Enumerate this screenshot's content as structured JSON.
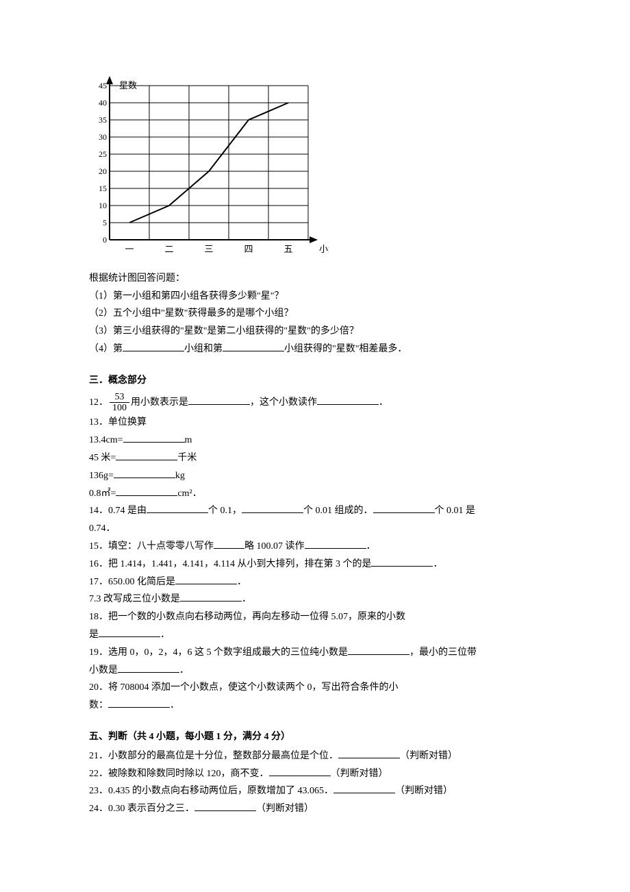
{
  "chart": {
    "type": "line",
    "y_label": "星数",
    "x_label": "小组",
    "categories": [
      "一",
      "二",
      "三",
      "四",
      "五"
    ],
    "values": [
      5,
      10,
      20,
      35,
      40
    ],
    "ylim": [
      0,
      45
    ],
    "ytick_step": 5,
    "y_ticks": [
      0,
      5,
      10,
      15,
      20,
      25,
      30,
      35,
      40,
      45
    ],
    "axis_color": "#000000",
    "grid_color": "#000000",
    "line_color": "#000000",
    "line_width": 2,
    "label_fontsize": 13,
    "tick_fontsize": 12,
    "background_color": "#ffffff"
  },
  "intro_line": "根据统计图回答问题：",
  "q1": "（1）第一小组和第四小组各获得多少颗\"星\"？",
  "q2": "（2）五个小组中\"星数\"获得最多的是哪个小组？",
  "q3": "（3）第三小组获得的\"星数\"是第二小组获得的\"星数\"的多少倍？",
  "q4_pre": "（4）第",
  "q4_mid": "小组和第",
  "q4_post": "小组获得的\"星数\"相差最多．",
  "sec3_head": "三．概念部分",
  "q12_pre": "12．",
  "q12_frac_num": "53",
  "q12_frac_den": "100",
  "q12_mid1": "用小数表示是",
  "q12_mid2": "，这个小数读作",
  "q12_end": "．",
  "q13_head": "13．单位换算",
  "q13_1_pre": "13.4cm=",
  "q13_1_unit": "m",
  "q13_2_pre": "45 米=",
  "q13_2_unit": "千米",
  "q13_3_pre": "136g=",
  "q13_3_unit": "kg",
  "q13_4_pre": "0.8㎡=",
  "q13_4_unit": "cm²．",
  "q14_pre": "14．0.74 是由",
  "q14_m1": "个 0.1，",
  "q14_m2": "个 0.01 组成的．",
  "q14_m3": "个 0.01 是",
  "q14_line2": "0.74．",
  "q15_pre": "15．填空：八十点零零八写作",
  "q15_mid": "略 100.07 读作",
  "q15_end": "．",
  "q16_pre": "16．把 1.414，1.441，4.141，4.114 从小到大排列，排在第 3 个的是",
  "q16_end": "．",
  "q17_pre": "17．650.00 化简后是",
  "q17_end": "．",
  "q17b_pre": "7.3 改写成三位小数是",
  "q17b_end": "．",
  "q18_line1": "18．把一个数的小数点向右移动两位，再向左移动一位得 5.07，原来的小数",
  "q18_line2_pre": "是",
  "q18_line2_end": "．",
  "q19_pre": "19．选用 0，0，2，4，6 这 5 个数字组成最大的三位纯小数是",
  "q19_mid": "，最小的三位带",
  "q19_line2_pre": "小数是",
  "q19_line2_end": "．",
  "q20_line1": "20．将 708004 添加一个小数点，使这个小数读两个 0，写出符合条件的小",
  "q20_line2_pre": "数：",
  "q20_line2_end": "．",
  "sec5_head": "五、判断（共 4 小题，每小题 1 分，满分 4 分）",
  "q21_pre": "21．小数部分的最高位是十分位，整数部分最高位是个位．",
  "q21_end": "（判断对错）",
  "q22_pre": "22．被除数和除数同时除以 120，商不变．",
  "q22_end": "（判断对错）",
  "q23_pre": "23．0.435 的小数点向右移动两位后，原数增加了 43.065．",
  "q23_end": "（判断对错）",
  "q24_pre": "24．0.30 表示百分之三．",
  "q24_end": "（判断对错）"
}
